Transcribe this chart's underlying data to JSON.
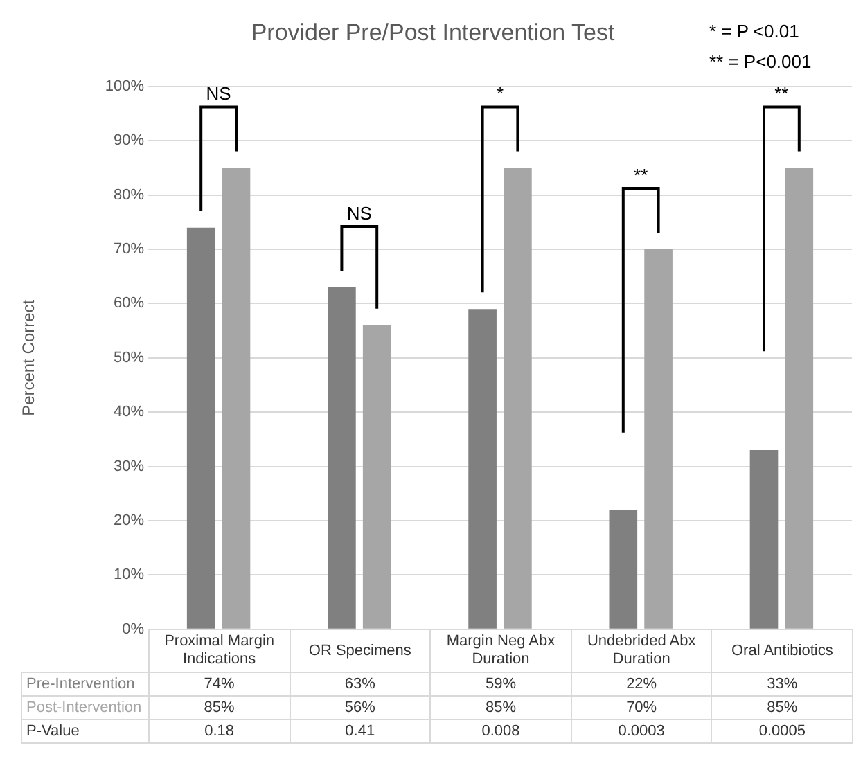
{
  "chart_data": {
    "type": "bar",
    "title": "Provider Pre/Post Intervention Test",
    "ylabel": "Percent Correct",
    "categories": [
      "Proximal Margin Indications",
      "OR Specimens",
      "Margin Neg Abx Duration",
      "Undebrided Abx Duration",
      "Oral Antibiotics"
    ],
    "series": [
      {
        "name": "Pre-Intervention",
        "color": "#808080",
        "values": [
          74,
          63,
          59,
          22,
          33
        ],
        "value_labels": [
          "74%",
          "63%",
          "59%",
          "22%",
          "33%"
        ]
      },
      {
        "name": "Post-Intervention",
        "color": "#a6a6a6",
        "values": [
          85,
          56,
          85,
          70,
          85
        ],
        "value_labels": [
          "85%",
          "56%",
          "85%",
          "70%",
          "85%"
        ]
      }
    ],
    "ylim": [
      0,
      100
    ],
    "yticks": [
      {
        "value": 0,
        "label": "0%"
      },
      {
        "value": 10,
        "label": "10%"
      },
      {
        "value": 20,
        "label": "20%"
      },
      {
        "value": 30,
        "label": "30%"
      },
      {
        "value": 40,
        "label": "40%"
      },
      {
        "value": 50,
        "label": "50%"
      },
      {
        "value": 60,
        "label": "60%"
      },
      {
        "value": 70,
        "label": "70%"
      },
      {
        "value": 80,
        "label": "80%"
      },
      {
        "value": 90,
        "label": "90%"
      },
      {
        "value": 100,
        "label": "100%"
      }
    ],
    "grid": "y",
    "legend": false,
    "annotations": [
      "* = P <0.01",
      "** = P<0.001",
      "NS",
      "NS",
      "*",
      "**",
      "**",
      "P-Value",
      "0.18",
      "0.41",
      "0.008",
      "0.0003",
      "0.0005"
    ]
  }
}
